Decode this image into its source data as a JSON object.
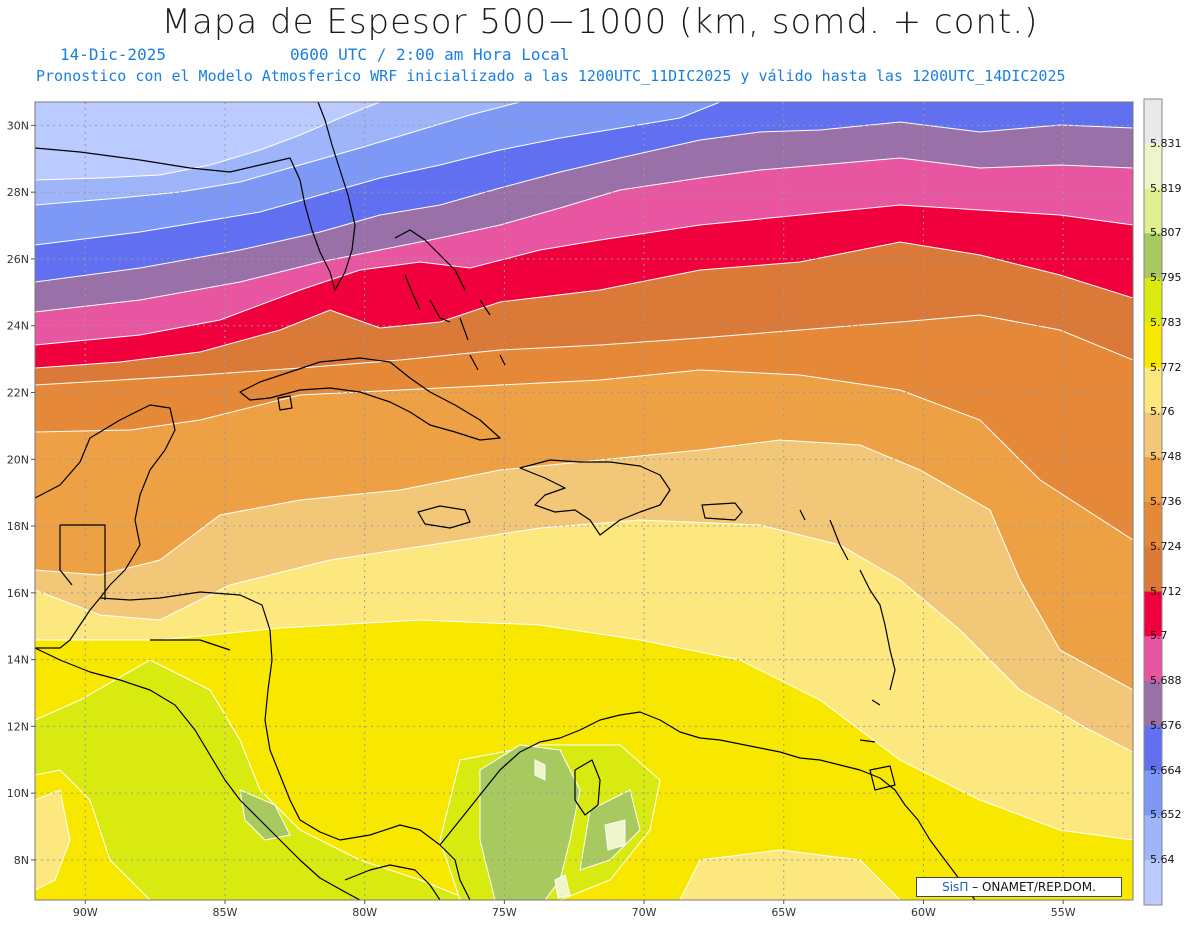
{
  "header": {
    "title": "Mapa de Espesor 500−1000 (km, somd. + cont.)",
    "date": "14-Dic-2025",
    "time": "0600 UTC / 2:00 am Hora Local",
    "model_info": "Pronostico con el Modelo Atmosferico WRF inicializado a las 1200UTC_11DIC2025 y válido hasta las  1200UTC_14DIC2025"
  },
  "map": {
    "lat_labels": [
      "30N",
      "28N",
      "26N",
      "24N",
      "22N",
      "20N",
      "18N",
      "16N",
      "14N",
      "12N",
      "10N",
      "8N"
    ],
    "lat_values": [
      30,
      28,
      26,
      24,
      22,
      20,
      18,
      16,
      14,
      12,
      10,
      8
    ],
    "lon_labels": [
      "90W",
      "85W",
      "80W",
      "75W",
      "70W",
      "65W",
      "60W",
      "55W"
    ],
    "lon_values": [
      -90,
      -85,
      -80,
      -75,
      -70,
      -65,
      -60,
      -55
    ],
    "lon_range": [
      -91.8,
      -52.5
    ],
    "lat_range": [
      6.8,
      30.7
    ]
  },
  "colorbar": {
    "labels": [
      "5.831",
      "5.819",
      "5.807",
      "5.795",
      "5.783",
      "5.772",
      "5.76",
      "5.748",
      "5.736",
      "5.724",
      "5.712",
      "5.7",
      "5.688",
      "5.676",
      "5.664",
      "5.652",
      "5.64"
    ],
    "colors": [
      "#e9e9e9",
      "#eef5c8",
      "#e0f090",
      "#a8c860",
      "#d8ea10",
      "#f8e800",
      "#fde880",
      "#f2c878",
      "#eea045",
      "#e58838",
      "#db7a38",
      "#f0003c",
      "#e855a0",
      "#9a70a8",
      "#6070f0",
      "#7d98f5",
      "#9fb5fa",
      "#bccbff"
    ]
  },
  "credit": {
    "brand": "SisΠ",
    "org": "– ONAMET/REP.DOM."
  }
}
